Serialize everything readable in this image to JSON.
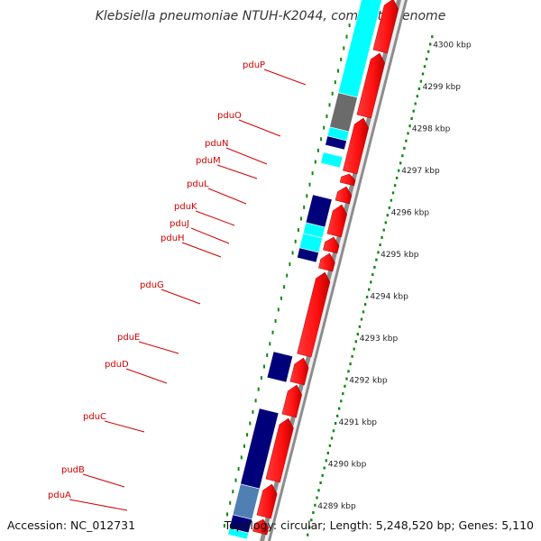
{
  "title": "Klebsiella pneumoniae NTUH-K2044, complete genome",
  "footer": {
    "accession": "Accession: NC_012731",
    "topology": "Topology: circular; Length: 5,248,520 bp; Genes: 5,110"
  },
  "colors": {
    "cds_forward": "#ff1a1a",
    "cds_forward_dark": "#b00000",
    "cyan_feature": "#00ffff",
    "navy_feature": "#00007a",
    "steel_feature": "#4f7fb3",
    "gray_feature": "#6b6b6b",
    "backbone": "#8c8c8c",
    "ruler_dots": "#118811",
    "label_red": "#d40000"
  },
  "tick_labels": [
    "4289 kbp",
    "4290 kbp",
    "4291 kbp",
    "4292 kbp",
    "4293 kbp",
    "4294 kbp",
    "4295 kbp",
    "4296 kbp",
    "4297 kbp",
    "4298 kbp",
    "4299 kbp",
    "4300 kbp"
  ],
  "gene_labels": [
    "pduA",
    "pudB",
    "pduC",
    "pduD",
    "pduE",
    "pduG",
    "pduH",
    "pduJ",
    "pduK",
    "pduL",
    "pduM",
    "pduN",
    "pduO",
    "pduP"
  ]
}
